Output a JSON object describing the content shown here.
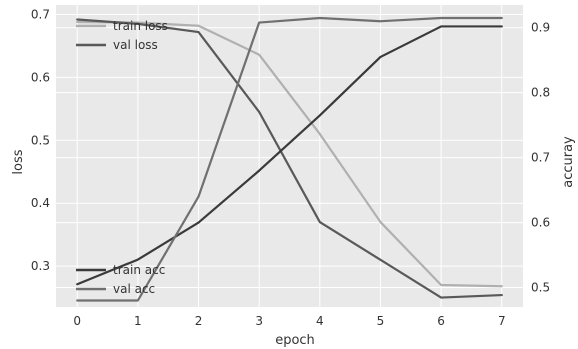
{
  "chart_data": {
    "type": "line",
    "title": "",
    "xlabel": "epoch",
    "ylabel_left": "loss",
    "ylabel_right": "accuray",
    "grid": true,
    "x": [
      0,
      1,
      2,
      3,
      4,
      5,
      6,
      7
    ],
    "x_ticks": [
      "0",
      "1",
      "2",
      "3",
      "4",
      "5",
      "6",
      "7"
    ],
    "xlim": [
      -0.35,
      7.35
    ],
    "y_left": {
      "lim": [
        0.235,
        0.715
      ],
      "ticks": [
        0.3,
        0.4,
        0.5,
        0.6,
        0.7
      ],
      "tick_labels": [
        "0.3",
        "0.4",
        "0.5",
        "0.6",
        "0.7"
      ]
    },
    "y_right": {
      "lim": [
        0.47,
        0.935
      ],
      "ticks": [
        0.5,
        0.6,
        0.7,
        0.8,
        0.9
      ],
      "tick_labels": [
        "0.5",
        "0.6",
        "0.7",
        "0.8",
        "0.9"
      ]
    },
    "series": [
      {
        "name": "train loss",
        "axis": "left",
        "color": "#b0b0b0",
        "values": [
          0.688,
          0.687,
          0.682,
          0.636,
          0.51,
          0.37,
          0.27,
          0.268
        ]
      },
      {
        "name": "val loss",
        "axis": "left",
        "color": "#595959",
        "values": [
          0.692,
          0.685,
          0.672,
          0.545,
          0.37,
          0.31,
          0.25,
          0.254
        ]
      },
      {
        "name": "train acc",
        "axis": "right",
        "color": "#3a3a3a",
        "values": [
          0.505,
          0.543,
          0.6,
          0.68,
          0.765,
          0.855,
          0.902,
          0.902
        ]
      },
      {
        "name": "val acc",
        "axis": "right",
        "color": "#707070",
        "values": [
          0.48,
          0.48,
          0.64,
          0.908,
          0.915,
          0.91,
          0.915,
          0.915
        ]
      }
    ],
    "legend_top": {
      "placement": "upper-left",
      "items": [
        "train loss",
        "val loss"
      ]
    },
    "legend_bottom": {
      "placement": "lower-left",
      "items": [
        "train acc",
        "val acc"
      ]
    }
  }
}
